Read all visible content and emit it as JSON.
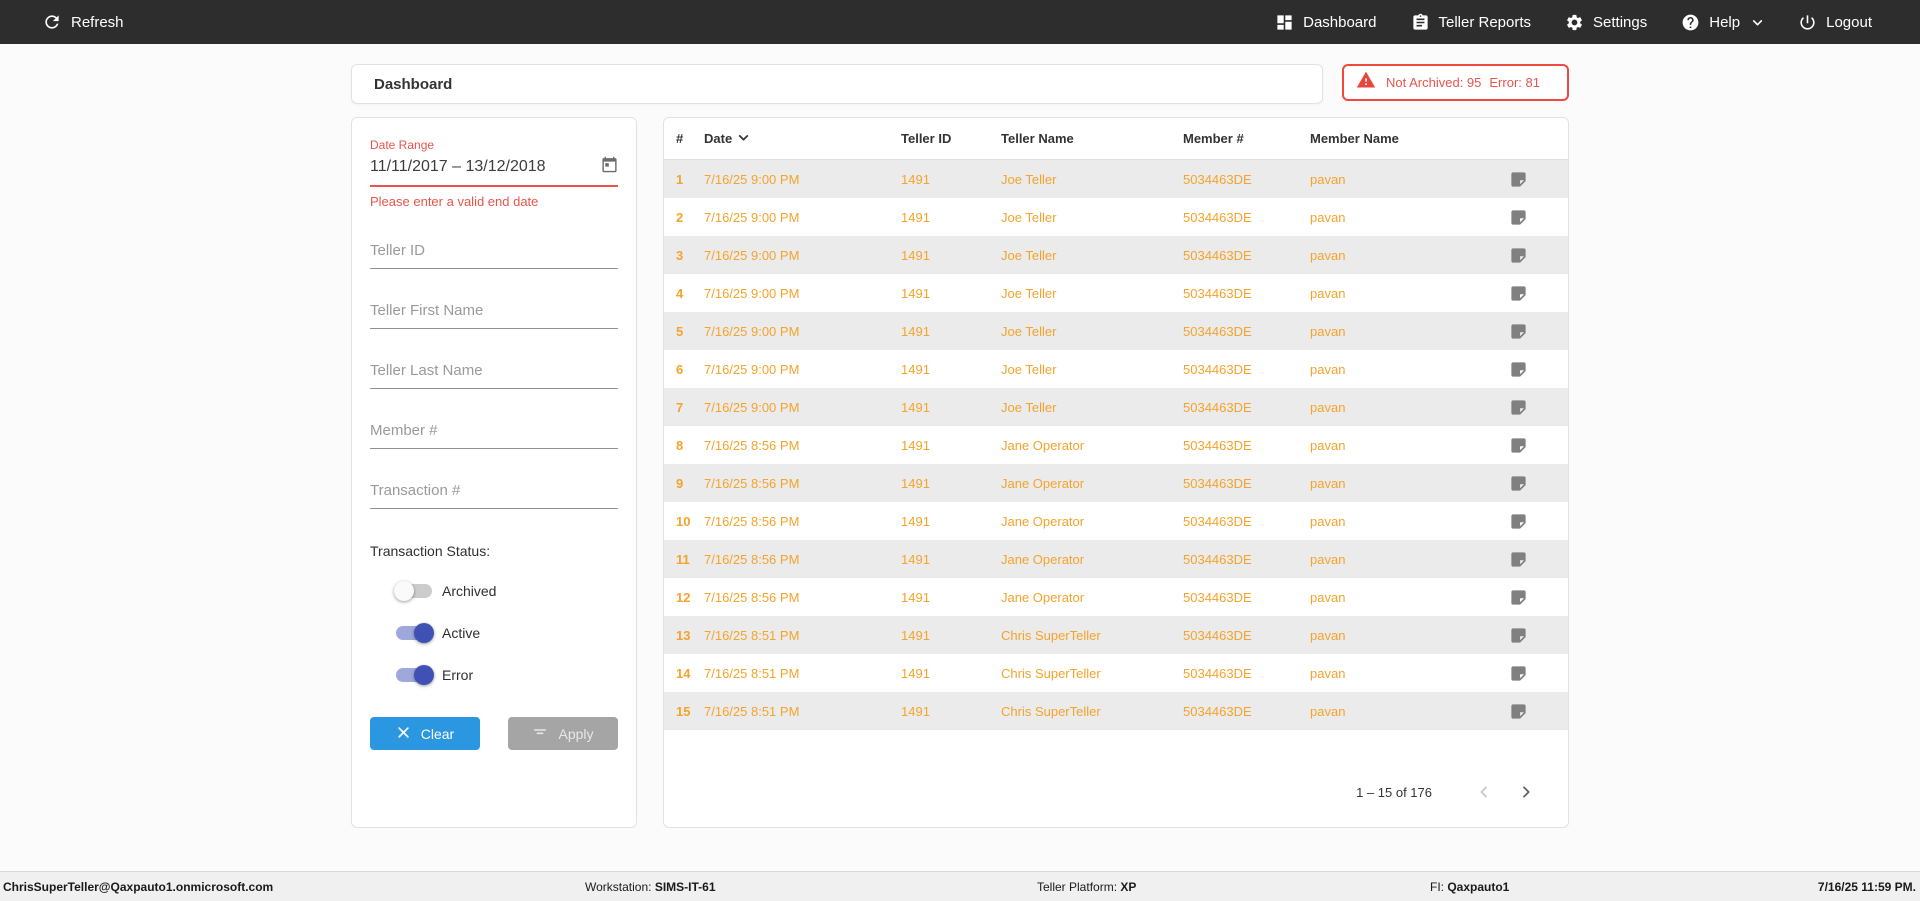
{
  "nav": {
    "refresh_label": "Refresh",
    "items": [
      {
        "icon": "dashboard-icon",
        "label": "Dashboard"
      },
      {
        "icon": "teller-reports-icon",
        "label": "Teller Reports"
      },
      {
        "icon": "settings-gear-icon",
        "label": "Settings"
      },
      {
        "icon": "help-icon",
        "label": "Help"
      },
      {
        "icon": "power-icon",
        "label": "Logout"
      }
    ]
  },
  "header": {
    "title": "Dashboard",
    "alert": {
      "not_archived": "Not Archived: 95",
      "error": "Error: 81"
    }
  },
  "filters": {
    "date_range": {
      "label": "Date Range",
      "value": "11/11/2017 – 13/12/2018",
      "error": "Please enter a valid end date"
    },
    "fields": [
      {
        "placeholder": "Teller ID"
      },
      {
        "placeholder": "Teller First Name"
      },
      {
        "placeholder": "Teller Last Name"
      },
      {
        "placeholder": "Member #"
      },
      {
        "placeholder": "Transaction #"
      }
    ],
    "status": {
      "label": "Transaction Status:",
      "toggles": [
        {
          "label": "Archived",
          "on": false
        },
        {
          "label": "Active",
          "on": true
        },
        {
          "label": "Error",
          "on": true
        }
      ]
    },
    "clear_label": "Clear",
    "apply_label": "Apply"
  },
  "table": {
    "columns": [
      "#",
      "Date",
      "Teller ID",
      "Teller Name",
      "Member #",
      "Member Name"
    ],
    "rows": [
      {
        "num": "1",
        "date": "7/16/25 9:00 PM",
        "teller_id": "1491",
        "teller_name": "Joe Teller",
        "member_num": "5034463DE",
        "member_name": "pavan"
      },
      {
        "num": "2",
        "date": "7/16/25 9:00 PM",
        "teller_id": "1491",
        "teller_name": "Joe Teller",
        "member_num": "5034463DE",
        "member_name": "pavan"
      },
      {
        "num": "3",
        "date": "7/16/25 9:00 PM",
        "teller_id": "1491",
        "teller_name": "Joe Teller",
        "member_num": "5034463DE",
        "member_name": "pavan"
      },
      {
        "num": "4",
        "date": "7/16/25 9:00 PM",
        "teller_id": "1491",
        "teller_name": "Joe Teller",
        "member_num": "5034463DE",
        "member_name": "pavan"
      },
      {
        "num": "5",
        "date": "7/16/25 9:00 PM",
        "teller_id": "1491",
        "teller_name": "Joe Teller",
        "member_num": "5034463DE",
        "member_name": "pavan"
      },
      {
        "num": "6",
        "date": "7/16/25 9:00 PM",
        "teller_id": "1491",
        "teller_name": "Joe Teller",
        "member_num": "5034463DE",
        "member_name": "pavan"
      },
      {
        "num": "7",
        "date": "7/16/25 9:00 PM",
        "teller_id": "1491",
        "teller_name": "Joe Teller",
        "member_num": "5034463DE",
        "member_name": "pavan"
      },
      {
        "num": "8",
        "date": "7/16/25 8:56 PM",
        "teller_id": "1491",
        "teller_name": "Jane Operator",
        "member_num": "5034463DE",
        "member_name": "pavan"
      },
      {
        "num": "9",
        "date": "7/16/25 8:56 PM",
        "teller_id": "1491",
        "teller_name": "Jane Operator",
        "member_num": "5034463DE",
        "member_name": "pavan"
      },
      {
        "num": "10",
        "date": "7/16/25 8:56 PM",
        "teller_id": "1491",
        "teller_name": "Jane Operator",
        "member_num": "5034463DE",
        "member_name": "pavan"
      },
      {
        "num": "11",
        "date": "7/16/25 8:56 PM",
        "teller_id": "1491",
        "teller_name": "Jane Operator",
        "member_num": "5034463DE",
        "member_name": "pavan"
      },
      {
        "num": "12",
        "date": "7/16/25 8:56 PM",
        "teller_id": "1491",
        "teller_name": "Jane Operator",
        "member_num": "5034463DE",
        "member_name": "pavan"
      },
      {
        "num": "13",
        "date": "7/16/25 8:51 PM",
        "teller_id": "1491",
        "teller_name": "Chris SuperTeller",
        "member_num": "5034463DE",
        "member_name": "pavan"
      },
      {
        "num": "14",
        "date": "7/16/25 8:51 PM",
        "teller_id": "1491",
        "teller_name": "Chris SuperTeller",
        "member_num": "5034463DE",
        "member_name": "pavan"
      },
      {
        "num": "15",
        "date": "7/16/25 8:51 PM",
        "teller_id": "1491",
        "teller_name": "Chris SuperTeller",
        "member_num": "5034463DE",
        "member_name": "pavan"
      }
    ],
    "pagination": {
      "range_label": "1 – 15 of 176"
    }
  },
  "footer": {
    "user": "ChrisSuperTeller@Qaxpauto1.onmicrosoft.com",
    "workstation_label": "Workstation:",
    "workstation_value": "SIMS-IT-61",
    "platform_label": "Teller Platform:",
    "platform_value": "XP",
    "fi_label": "FI:",
    "fi_value": "Qaxpauto1",
    "timestamp": "7/16/25 11:59 PM."
  },
  "colors": {
    "nav_bg": "#2d2d2d",
    "alert_red": "#f1493e",
    "row_text_orange": "#f5a32b",
    "toggle_on_indigo": "#3f51b5",
    "clear_blue": "#2b97e0",
    "apply_gray": "#a5a5a5",
    "odd_row_bg": "#ebebeb"
  }
}
